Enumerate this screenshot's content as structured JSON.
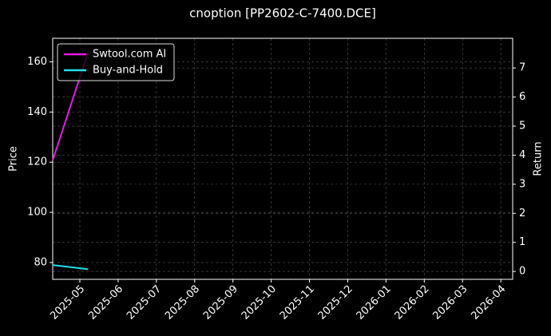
{
  "chart_data": {
    "type": "line",
    "title": "cnoption [PP2602-C-7400.DCE]",
    "ylabel": "Price",
    "y2label": "Return",
    "x": [
      -0.71,
      0.21
    ],
    "xlim": [
      -0.71,
      11.31
    ],
    "xticks": [
      {
        "value": 0,
        "label": "2025-05"
      },
      {
        "value": 1,
        "label": "2025-06"
      },
      {
        "value": 2,
        "label": "2025-07"
      },
      {
        "value": 3,
        "label": "2025-08"
      },
      {
        "value": 4,
        "label": "2025-09"
      },
      {
        "value": 5,
        "label": "2025-10"
      },
      {
        "value": 6,
        "label": "2025-11"
      },
      {
        "value": 7,
        "label": "2025-12"
      },
      {
        "value": 8,
        "label": "2026-01"
      },
      {
        "value": 9,
        "label": "2026-02"
      },
      {
        "value": 10,
        "label": "2026-03"
      },
      {
        "value": 11,
        "label": "2026-04"
      }
    ],
    "ylim": [
      73.3,
      169.4
    ],
    "yticks": [
      80,
      100,
      120,
      140,
      160
    ],
    "y2lim": [
      -0.27,
      8.02
    ],
    "y2ticks": [
      0,
      1,
      2,
      3,
      4,
      5,
      6,
      7
    ],
    "series": [
      {
        "name": "Swtool.com AI",
        "color": "#e619e6",
        "axis": "y2",
        "values": [
          3.82,
          7.52
        ]
      },
      {
        "name": "Buy-and-Hold",
        "color": "#22e0e8",
        "axis": "y2",
        "values": [
          0.22,
          0.08
        ]
      }
    ],
    "grid": true,
    "legend": "upper left"
  }
}
